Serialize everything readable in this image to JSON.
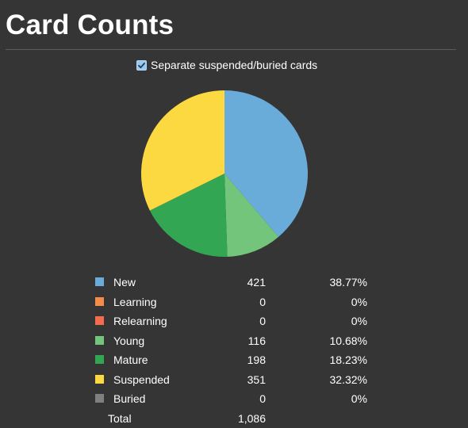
{
  "page": {
    "title": "Card Counts",
    "separate_toggle": {
      "label": "Separate suspended/buried cards",
      "checked": true
    }
  },
  "chart_data": {
    "type": "pie",
    "slices": [
      {
        "label": "New",
        "count": "421",
        "percent": "38.77%",
        "value": 421,
        "color": "#6aacd9",
        "show_in_pie": true
      },
      {
        "label": "Learning",
        "count": "0",
        "percent": "0%",
        "value": 0,
        "color": "#f28c48",
        "show_in_pie": true
      },
      {
        "label": "Relearning",
        "count": "0",
        "percent": "0%",
        "value": 0,
        "color": "#f46b4d",
        "show_in_pie": true
      },
      {
        "label": "Young",
        "count": "116",
        "percent": "10.68%",
        "value": 116,
        "color": "#72c57a",
        "show_in_pie": true
      },
      {
        "label": "Mature",
        "count": "198",
        "percent": "18.23%",
        "value": 198,
        "color": "#33a654",
        "show_in_pie": true
      },
      {
        "label": "Suspended",
        "count": "351",
        "percent": "32.32%",
        "value": 351,
        "color": "#fcd940",
        "show_in_pie": true
      },
      {
        "label": "Buried",
        "count": "0",
        "percent": "0%",
        "value": 0,
        "color": "#808080",
        "show_in_pie": true
      }
    ],
    "total": {
      "label": "Total",
      "count": "1,086"
    }
  }
}
